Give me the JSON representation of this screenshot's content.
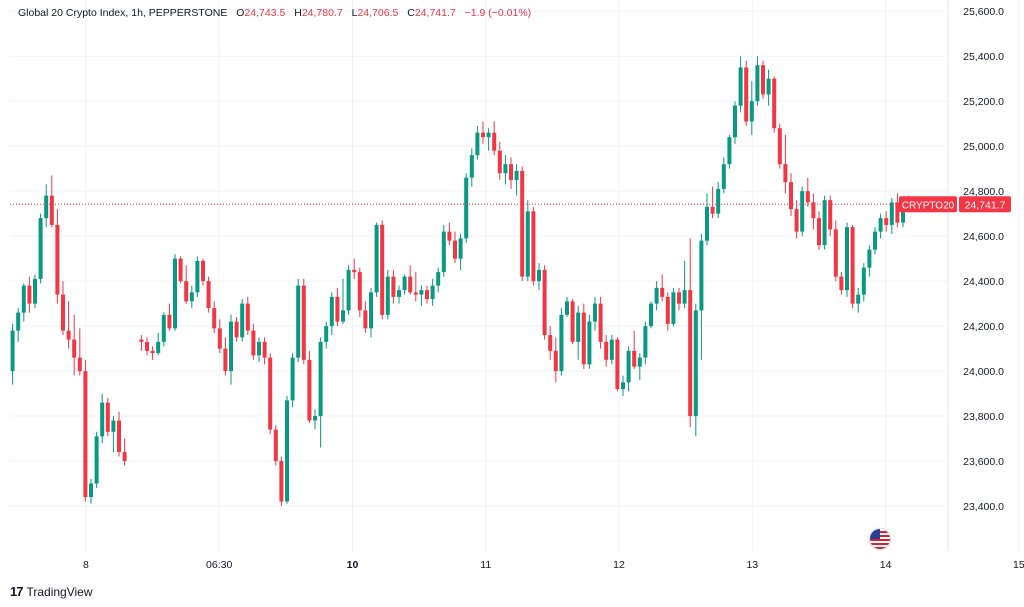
{
  "legend": {
    "symbol": "Global 20 Crypto Index, 1h, PEPPERSTONE",
    "o_label": "O",
    "o_value": "24,743.5",
    "h_label": "H",
    "h_value": "24,780.7",
    "l_label": "L",
    "l_value": "24,706.5",
    "c_label": "C",
    "c_value": "24,741.7",
    "change": "−1.9 (−0.01%)"
  },
  "price_tag": {
    "symbol": "CRYPTO20",
    "value": "24,741.7"
  },
  "branding": {
    "name": "TradingView"
  },
  "colors": {
    "up": "#089981",
    "down": "#f23645",
    "grid": "#f0f3fa",
    "text": "#131722"
  },
  "chart_data": {
    "type": "candlestick",
    "ylim": [
      23200,
      25650
    ],
    "y_ticks": [
      "25,600.0",
      "25,400.0",
      "25,200.0",
      "25,000.0",
      "24,800.0",
      "24,600.0",
      "24,400.0",
      "24,200.0",
      "24,000.0",
      "23,800.0",
      "23,600.0",
      "23,400.0"
    ],
    "y_tick_values": [
      25600,
      25400,
      25200,
      25000,
      24800,
      24600,
      24400,
      24200,
      24000,
      23800,
      23600,
      23400
    ],
    "x_ticks": [
      {
        "label": "8",
        "pos": 5.5,
        "bold": false
      },
      {
        "label": "06:30",
        "pos": 15.5,
        "bold": false
      },
      {
        "label": "10",
        "pos": 25.5,
        "bold": true
      },
      {
        "label": "11",
        "pos": 35.5,
        "bold": false
      },
      {
        "label": "12",
        "pos": 45.5,
        "bold": false
      },
      {
        "label": "13",
        "pos": 55.5,
        "bold": false
      },
      {
        "label": "14",
        "pos": 65.5,
        "bold": false
      },
      {
        "label": "15",
        "pos": 75.5,
        "bold": false
      }
    ],
    "last_price": 24741.7,
    "candles": [
      [
        24000,
        24210,
        23940,
        24180
      ],
      [
        24180,
        24280,
        24130,
        24260
      ],
      [
        24260,
        24390,
        24220,
        24380
      ],
      [
        24380,
        24420,
        24260,
        24300
      ],
      [
        24300,
        24430,
        24280,
        24410
      ],
      [
        24410,
        24700,
        24390,
        24680
      ],
      [
        24680,
        24830,
        24640,
        24780
      ],
      [
        24780,
        24870,
        24640,
        24650
      ],
      [
        24650,
        24720,
        24300,
        24340
      ],
      [
        24340,
        24400,
        24160,
        24180
      ],
      [
        24180,
        24310,
        24100,
        24140
      ],
      [
        24140,
        24250,
        23980,
        24060
      ],
      [
        24060,
        24190,
        23980,
        24000
      ],
      [
        24000,
        24050,
        23420,
        23440
      ],
      [
        23440,
        23520,
        23410,
        23500
      ],
      [
        23500,
        23730,
        23480,
        23710
      ],
      [
        23710,
        23900,
        23680,
        23860
      ],
      [
        23860,
        23880,
        23710,
        23730
      ],
      [
        23730,
        23800,
        23640,
        23780
      ],
      [
        23780,
        23820,
        23620,
        23640
      ],
      [
        23640,
        23700,
        23580,
        23600
      ],
      [
        null,
        null,
        null,
        null
      ],
      [
        null,
        null,
        null,
        null
      ],
      [
        24140,
        24160,
        24090,
        24130
      ],
      [
        24130,
        24150,
        24070,
        24090
      ],
      [
        24090,
        24110,
        24050,
        24080
      ],
      [
        24080,
        24170,
        24070,
        24130
      ],
      [
        24130,
        24260,
        24110,
        24250
      ],
      [
        24250,
        24300,
        24180,
        24190
      ],
      [
        24190,
        24520,
        24180,
        24500
      ],
      [
        24500,
        24510,
        24390,
        24400
      ],
      [
        24400,
        24470,
        24300,
        24310
      ],
      [
        24310,
        24380,
        24280,
        24350
      ],
      [
        24350,
        24510,
        24330,
        24490
      ],
      [
        24490,
        24500,
        24380,
        24400
      ],
      [
        24400,
        24420,
        24260,
        24280
      ],
      [
        24280,
        24310,
        24170,
        24190
      ],
      [
        24190,
        24230,
        24080,
        24100
      ],
      [
        24100,
        24150,
        23980,
        24000
      ],
      [
        24000,
        24250,
        23940,
        24220
      ],
      [
        24220,
        24240,
        24130,
        24150
      ],
      [
        24150,
        24320,
        24130,
        24300
      ],
      [
        24300,
        24330,
        24160,
        24180
      ],
      [
        24180,
        24210,
        24050,
        24070
      ],
      [
        24070,
        24150,
        24040,
        24130
      ],
      [
        24130,
        24150,
        24030,
        24060
      ],
      [
        24060,
        24080,
        23720,
        23740
      ],
      [
        23740,
        23760,
        23580,
        23600
      ],
      [
        23600,
        23620,
        23400,
        23420
      ],
      [
        23420,
        23890,
        23410,
        23870
      ],
      [
        23870,
        24080,
        23840,
        24060
      ],
      [
        24060,
        24410,
        24040,
        24380
      ],
      [
        24380,
        24410,
        24030,
        24050
      ],
      [
        24050,
        24090,
        23770,
        23780
      ],
      [
        23780,
        23830,
        23740,
        23800
      ],
      [
        23800,
        24150,
        23660,
        24130
      ],
      [
        24130,
        24220,
        24100,
        24200
      ],
      [
        24200,
        24350,
        24160,
        24330
      ],
      [
        24330,
        24370,
        24200,
        24220
      ],
      [
        24220,
        24410,
        24210,
        24270
      ],
      [
        24270,
        24470,
        24250,
        24450
      ],
      [
        24450,
        24500,
        24410,
        24440
      ],
      [
        24440,
        24460,
        24240,
        24270
      ],
      [
        24270,
        24310,
        24170,
        24190
      ],
      [
        24190,
        24370,
        24150,
        24350
      ],
      [
        24350,
        24660,
        24330,
        24650
      ],
      [
        24650,
        24670,
        24230,
        24250
      ],
      [
        24250,
        24450,
        24230,
        24420
      ],
      [
        24420,
        24450,
        24300,
        24330
      ],
      [
        24330,
        24380,
        24300,
        24360
      ],
      [
        24360,
        24430,
        24340,
        24420
      ],
      [
        24420,
        24470,
        24340,
        24350
      ],
      [
        24350,
        24440,
        24310,
        24340
      ],
      [
        24340,
        24380,
        24290,
        24360
      ],
      [
        24360,
        24380,
        24300,
        24320
      ],
      [
        24320,
        24410,
        24290,
        24380
      ],
      [
        24380,
        24460,
        24350,
        24440
      ],
      [
        24440,
        24650,
        24420,
        24620
      ],
      [
        24620,
        24660,
        24560,
        24580
      ],
      [
        24580,
        24620,
        24480,
        24500
      ],
      [
        24500,
        24610,
        24450,
        24590
      ],
      [
        24590,
        24880,
        24570,
        24860
      ],
      [
        24860,
        24990,
        24820,
        24960
      ],
      [
        24960,
        25090,
        24940,
        25060
      ],
      [
        25060,
        25110,
        25010,
        25040
      ],
      [
        25040,
        25080,
        24980,
        25060
      ],
      [
        25060,
        25110,
        24960,
        24980
      ],
      [
        24980,
        25020,
        24850,
        24880
      ],
      [
        24880,
        24960,
        24830,
        24920
      ],
      [
        24920,
        24950,
        24810,
        24850
      ],
      [
        24850,
        24920,
        24780,
        24890
      ],
      [
        24890,
        24910,
        24400,
        24420
      ],
      [
        24420,
        24760,
        24400,
        24710
      ],
      [
        24710,
        24730,
        24380,
        24400
      ],
      [
        24400,
        24480,
        24360,
        24450
      ],
      [
        24450,
        24470,
        24140,
        24160
      ],
      [
        24160,
        24200,
        24050,
        24090
      ],
      [
        24090,
        24150,
        23950,
        24000
      ],
      [
        24000,
        24280,
        23980,
        24250
      ],
      [
        24250,
        24330,
        24240,
        24310
      ],
      [
        24310,
        24320,
        24120,
        24130
      ],
      [
        24130,
        24290,
        24050,
        24260
      ],
      [
        24260,
        24300,
        24010,
        24030
      ],
      [
        24030,
        24250,
        24010,
        24220
      ],
      [
        24220,
        24330,
        24180,
        24300
      ],
      [
        24300,
        24330,
        24100,
        24130
      ],
      [
        24130,
        24160,
        24020,
        24050
      ],
      [
        24050,
        24160,
        24030,
        24140
      ],
      [
        24140,
        24150,
        23910,
        23920
      ],
      [
        23920,
        23980,
        23890,
        23950
      ],
      [
        23950,
        24110,
        23910,
        24090
      ],
      [
        24090,
        24180,
        24010,
        24020
      ],
      [
        24020,
        24080,
        23960,
        24060
      ],
      [
        24060,
        24220,
        24030,
        24200
      ],
      [
        24200,
        24310,
        24190,
        24300
      ],
      [
        24300,
        24400,
        24270,
        24370
      ],
      [
        24370,
        24430,
        24310,
        24330
      ],
      [
        24330,
        24350,
        24180,
        24210
      ],
      [
        24210,
        24370,
        24200,
        24350
      ],
      [
        24350,
        24370,
        24270,
        24300
      ],
      [
        24300,
        24490,
        24280,
        24360
      ],
      [
        24360,
        24590,
        23750,
        23800
      ],
      [
        23800,
        24300,
        23710,
        24270
      ],
      [
        24270,
        24610,
        24050,
        24580
      ],
      [
        24580,
        24790,
        24560,
        24730
      ],
      [
        24730,
        24820,
        24680,
        24700
      ],
      [
        24700,
        24840,
        24680,
        24810
      ],
      [
        24810,
        24950,
        24790,
        24920
      ],
      [
        24920,
        25050,
        24900,
        25040
      ],
      [
        25040,
        25200,
        25010,
        25180
      ],
      [
        25180,
        25400,
        25150,
        25350
      ],
      [
        25350,
        25380,
        25090,
        25110
      ],
      [
        25110,
        25290,
        25050,
        25200
      ],
      [
        25200,
        25400,
        25180,
        25360
      ],
      [
        25360,
        25380,
        25210,
        25230
      ],
      [
        25230,
        25340,
        25180,
        25300
      ],
      [
        25300,
        25310,
        25060,
        25080
      ],
      [
        25080,
        25100,
        24900,
        24920
      ],
      [
        24920,
        25050,
        24790,
        24840
      ],
      [
        24840,
        24880,
        24690,
        24720
      ],
      [
        24720,
        24760,
        24590,
        24620
      ],
      [
        24620,
        24820,
        24600,
        24800
      ],
      [
        24800,
        24860,
        24730,
        24750
      ],
      [
        24750,
        24790,
        24630,
        24680
      ],
      [
        24680,
        24710,
        24540,
        24560
      ],
      [
        24560,
        24780,
        24540,
        24760
      ],
      [
        24760,
        24780,
        24600,
        24630
      ],
      [
        24630,
        24670,
        24400,
        24420
      ],
      [
        24420,
        24440,
        24340,
        24360
      ],
      [
        24360,
        24660,
        24330,
        24640
      ],
      [
        24640,
        24650,
        24280,
        24300
      ],
      [
        24300,
        24370,
        24260,
        24340
      ],
      [
        24340,
        24480,
        24310,
        24460
      ],
      [
        24460,
        24560,
        24420,
        24540
      ],
      [
        24540,
        24640,
        24520,
        24620
      ],
      [
        24620,
        24700,
        24590,
        24680
      ],
      [
        24680,
        24710,
        24620,
        24650
      ],
      [
        24650,
        24770,
        24610,
        24750
      ],
      [
        24750,
        24790,
        24640,
        24660
      ],
      [
        24660,
        24760,
        24640,
        24740
      ],
      [
        24743.5,
        24780.7,
        24706.5,
        24741.7
      ]
    ]
  }
}
